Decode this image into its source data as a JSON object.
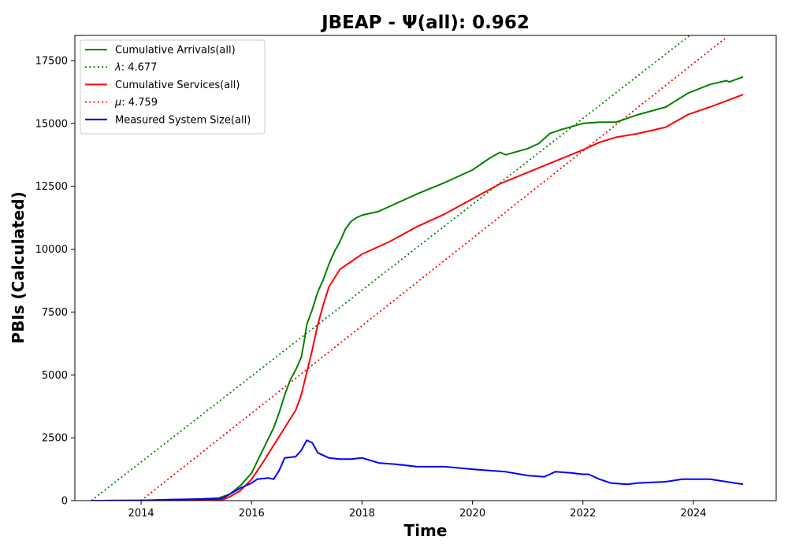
{
  "chart_data": {
    "type": "line",
    "title": "JBEAP -  Ψ(all): 0.962",
    "xlabel": "Time",
    "ylabel": "PBIs (Calculated)",
    "xlim": [
      2012.8,
      2025.5
    ],
    "ylim": [
      0,
      18500
    ],
    "x_ticks": [
      {
        "value": 2014,
        "label": "2014"
      },
      {
        "value": 2016,
        "label": "2016"
      },
      {
        "value": 2018,
        "label": "2018"
      },
      {
        "value": 2020,
        "label": "2020"
      },
      {
        "value": 2022,
        "label": "2022"
      },
      {
        "value": 2024,
        "label": "2024"
      }
    ],
    "y_ticks": [
      {
        "value": 0,
        "label": "0"
      },
      {
        "value": 2500,
        "label": "2500"
      },
      {
        "value": 5000,
        "label": "5000"
      },
      {
        "value": 7500,
        "label": "7500"
      },
      {
        "value": 10000,
        "label": "10000"
      },
      {
        "value": 12500,
        "label": "12500"
      },
      {
        "value": 15000,
        "label": "15000"
      },
      {
        "value": 17500,
        "label": "17500"
      }
    ],
    "grid": false,
    "legend_position": "top-left",
    "series": [
      {
        "name": "Cumulative Arrivals(all)",
        "color": "#008000",
        "style": "solid",
        "points": [
          [
            2013.1,
            0
          ],
          [
            2014.0,
            10
          ],
          [
            2015.0,
            60
          ],
          [
            2015.4,
            100
          ],
          [
            2015.6,
            250
          ],
          [
            2015.8,
            600
          ],
          [
            2016.0,
            1100
          ],
          [
            2016.2,
            2000
          ],
          [
            2016.4,
            2900
          ],
          [
            2016.5,
            3500
          ],
          [
            2016.6,
            4200
          ],
          [
            2016.7,
            4800
          ],
          [
            2016.8,
            5200
          ],
          [
            2016.9,
            5700
          ],
          [
            2016.95,
            6300
          ],
          [
            2017.0,
            7000
          ],
          [
            2017.1,
            7600
          ],
          [
            2017.2,
            8300
          ],
          [
            2017.3,
            8800
          ],
          [
            2017.4,
            9400
          ],
          [
            2017.5,
            9900
          ],
          [
            2017.6,
            10300
          ],
          [
            2017.7,
            10800
          ],
          [
            2017.8,
            11100
          ],
          [
            2017.9,
            11250
          ],
          [
            2018.0,
            11350
          ],
          [
            2018.3,
            11500
          ],
          [
            2018.6,
            11800
          ],
          [
            2019.0,
            12200
          ],
          [
            2019.5,
            12650
          ],
          [
            2020.0,
            13150
          ],
          [
            2020.3,
            13600
          ],
          [
            2020.5,
            13850
          ],
          [
            2020.6,
            13750
          ],
          [
            2021.0,
            14000
          ],
          [
            2021.2,
            14200
          ],
          [
            2021.4,
            14600
          ],
          [
            2021.6,
            14750
          ],
          [
            2022.0,
            15000
          ],
          [
            2022.3,
            15050
          ],
          [
            2022.6,
            15050
          ],
          [
            2023.0,
            15350
          ],
          [
            2023.5,
            15650
          ],
          [
            2023.9,
            16200
          ],
          [
            2024.3,
            16550
          ],
          [
            2024.6,
            16700
          ],
          [
            2024.65,
            16650
          ],
          [
            2024.9,
            16850
          ]
        ]
      },
      {
        "name": "λ: 4.677",
        "color": "#008000",
        "style": "dotted",
        "points": [
          [
            2013.1,
            0
          ],
          [
            2024.0,
            18614
          ]
        ]
      },
      {
        "name": "Cumulative Services(all)",
        "color": "#ff0000",
        "style": "solid",
        "points": [
          [
            2013.1,
            0
          ],
          [
            2015.0,
            20
          ],
          [
            2015.5,
            50
          ],
          [
            2015.6,
            150
          ],
          [
            2015.8,
            400
          ],
          [
            2016.0,
            850
          ],
          [
            2016.2,
            1500
          ],
          [
            2016.4,
            2200
          ],
          [
            2016.6,
            2900
          ],
          [
            2016.8,
            3600
          ],
          [
            2016.9,
            4200
          ],
          [
            2017.0,
            5100
          ],
          [
            2017.1,
            6000
          ],
          [
            2017.2,
            7000
          ],
          [
            2017.3,
            7800
          ],
          [
            2017.4,
            8500
          ],
          [
            2017.6,
            9200
          ],
          [
            2017.8,
            9500
          ],
          [
            2018.0,
            9800
          ],
          [
            2018.5,
            10300
          ],
          [
            2019.0,
            10900
          ],
          [
            2019.5,
            11400
          ],
          [
            2020.0,
            12000
          ],
          [
            2020.5,
            12600
          ],
          [
            2021.0,
            13050
          ],
          [
            2021.5,
            13500
          ],
          [
            2022.0,
            13950
          ],
          [
            2022.3,
            14250
          ],
          [
            2022.6,
            14450
          ],
          [
            2023.0,
            14600
          ],
          [
            2023.5,
            14850
          ],
          [
            2023.9,
            15350
          ],
          [
            2024.3,
            15650
          ],
          [
            2024.6,
            15900
          ],
          [
            2024.9,
            16150
          ]
        ]
      },
      {
        "name": "μ: 4.759",
        "color": "#ff0000",
        "style": "dotted",
        "points": [
          [
            2014.0,
            0
          ],
          [
            2024.6,
            18425
          ]
        ]
      },
      {
        "name": "Measured System Size(all)",
        "color": "#0000ff",
        "style": "solid",
        "points": [
          [
            2013.1,
            0
          ],
          [
            2014.0,
            10
          ],
          [
            2014.5,
            40
          ],
          [
            2015.0,
            60
          ],
          [
            2015.4,
            70
          ],
          [
            2015.5,
            120
          ],
          [
            2015.6,
            250
          ],
          [
            2015.8,
            500
          ],
          [
            2016.0,
            700
          ],
          [
            2016.1,
            850
          ],
          [
            2016.3,
            900
          ],
          [
            2016.4,
            850
          ],
          [
            2016.5,
            1200
          ],
          [
            2016.6,
            1700
          ],
          [
            2016.8,
            1750
          ],
          [
            2016.9,
            2000
          ],
          [
            2017.0,
            2400
          ],
          [
            2017.1,
            2300
          ],
          [
            2017.2,
            1900
          ],
          [
            2017.4,
            1700
          ],
          [
            2017.6,
            1650
          ],
          [
            2017.8,
            1650
          ],
          [
            2018.0,
            1700
          ],
          [
            2018.3,
            1500
          ],
          [
            2018.6,
            1450
          ],
          [
            2019.0,
            1350
          ],
          [
            2019.5,
            1350
          ],
          [
            2020.0,
            1250
          ],
          [
            2020.3,
            1200
          ],
          [
            2020.6,
            1150
          ],
          [
            2021.0,
            1000
          ],
          [
            2021.3,
            950
          ],
          [
            2021.5,
            1150
          ],
          [
            2021.8,
            1100
          ],
          [
            2022.0,
            1050
          ],
          [
            2022.1,
            1050
          ],
          [
            2022.3,
            850
          ],
          [
            2022.5,
            700
          ],
          [
            2022.8,
            650
          ],
          [
            2023.0,
            700
          ],
          [
            2023.5,
            750
          ],
          [
            2023.8,
            850
          ],
          [
            2024.0,
            850
          ],
          [
            2024.3,
            850
          ],
          [
            2024.6,
            750
          ],
          [
            2024.9,
            650
          ]
        ]
      }
    ]
  }
}
